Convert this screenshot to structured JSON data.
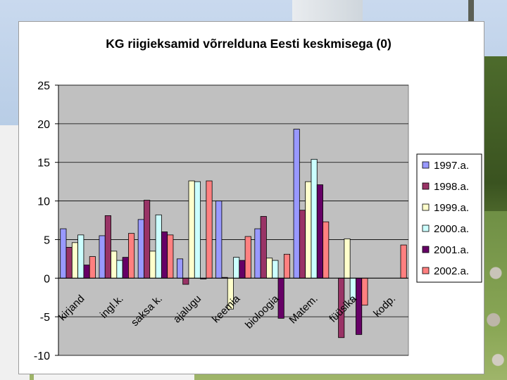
{
  "chart_data": {
    "type": "bar",
    "title": "KG riigieksamid võrrelduna Eesti keskmisega (0)",
    "xlabel": "",
    "ylabel": "",
    "ylim": [
      -10,
      25
    ],
    "yticks": [
      -10,
      -5,
      0,
      5,
      10,
      15,
      20,
      25
    ],
    "grid": true,
    "legend_position": "right",
    "plot_background": "#c0c0c0",
    "categories": [
      "kirjand",
      "ingl.k.",
      "saksa k.",
      "ajalugu",
      "keemia",
      "bioloogia",
      "Matem.",
      "füüsika",
      "kodp."
    ],
    "series": [
      {
        "name": "1997.a.",
        "color": "#9999ff",
        "values": [
          6.4,
          5.5,
          7.6,
          2.5,
          10.0,
          6.4,
          19.3,
          0,
          0
        ]
      },
      {
        "name": "1998.a.",
        "color": "#993366",
        "values": [
          4.0,
          8.1,
          10.1,
          -0.8,
          0.1,
          8.0,
          8.8,
          -7.7,
          0
        ]
      },
      {
        "name": "1999.a.",
        "color": "#ffffcc",
        "values": [
          4.6,
          3.5,
          3.5,
          12.6,
          -4.0,
          2.6,
          12.5,
          5.1,
          0
        ]
      },
      {
        "name": "2000.a.",
        "color": "#ccffff",
        "values": [
          5.6,
          2.3,
          8.2,
          12.5,
          2.7,
          2.3,
          15.4,
          -2.8,
          0
        ]
      },
      {
        "name": "2001.a.",
        "color": "#660066",
        "values": [
          1.7,
          2.7,
          6.0,
          -0.1,
          2.3,
          -5.2,
          12.1,
          -7.3,
          0
        ]
      },
      {
        "name": "2002.a.",
        "color": "#ff8080",
        "values": [
          2.8,
          5.8,
          5.6,
          12.6,
          5.4,
          3.1,
          7.3,
          -3.5,
          4.3
        ]
      }
    ]
  }
}
